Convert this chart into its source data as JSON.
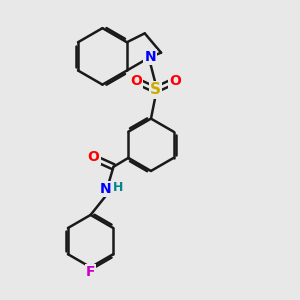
{
  "bg_color": "#e8e8e8",
  "bond_color": "#1a1a1a",
  "bond_width": 1.8,
  "atom_colors": {
    "N": "#0000ff",
    "O": "#ff0000",
    "S": "#ccaa00",
    "F": "#cc00cc",
    "H": "#008888",
    "C": "#1a1a1a"
  },
  "font_size_atom": 10,
  "font_size_H": 9,
  "figsize": [
    3.0,
    3.0
  ],
  "dpi": 100
}
